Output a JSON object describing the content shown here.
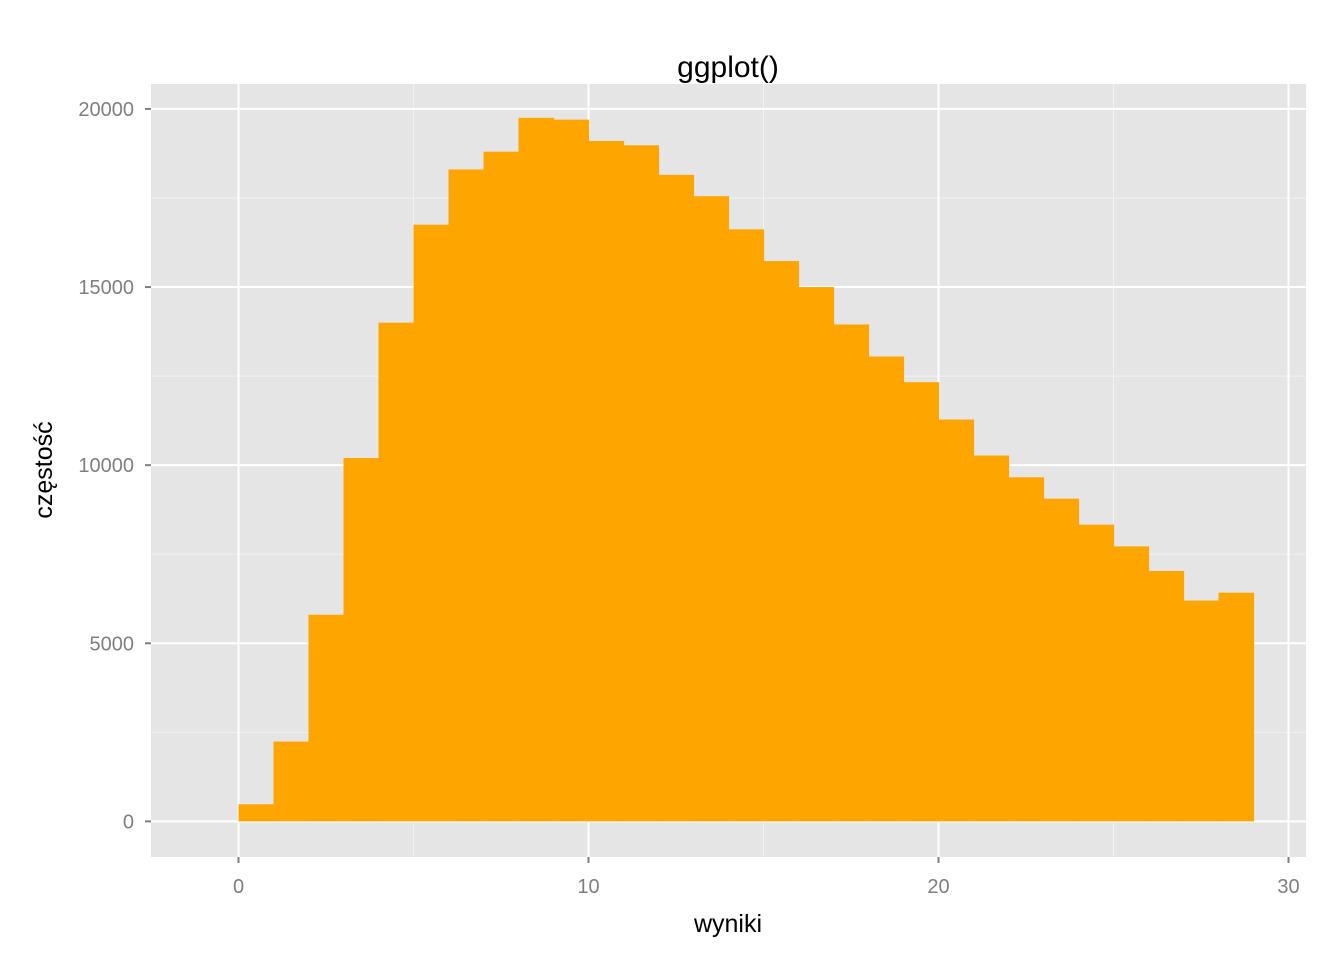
{
  "chart_data": {
    "type": "bar",
    "title": "ggplot()",
    "xlabel": "wyniki",
    "ylabel": "częstość",
    "bin_width": 1,
    "bins": [
      {
        "x0": 0,
        "x1": 1,
        "count": 480
      },
      {
        "x0": 1,
        "x1": 2,
        "count": 2240
      },
      {
        "x0": 2,
        "x1": 3,
        "count": 5800
      },
      {
        "x0": 3,
        "x1": 4,
        "count": 10200
      },
      {
        "x0": 4,
        "x1": 5,
        "count": 14000
      },
      {
        "x0": 5,
        "x1": 6,
        "count": 16750
      },
      {
        "x0": 6,
        "x1": 7,
        "count": 18300
      },
      {
        "x0": 7,
        "x1": 8,
        "count": 18800
      },
      {
        "x0": 8,
        "x1": 9,
        "count": 19750
      },
      {
        "x0": 9,
        "x1": 10,
        "count": 19700
      },
      {
        "x0": 10,
        "x1": 11,
        "count": 19100
      },
      {
        "x0": 11,
        "x1": 12,
        "count": 18980
      },
      {
        "x0": 12,
        "x1": 13,
        "count": 18150
      },
      {
        "x0": 13,
        "x1": 14,
        "count": 17550
      },
      {
        "x0": 14,
        "x1": 15,
        "count": 16620
      },
      {
        "x0": 15,
        "x1": 16,
        "count": 15730
      },
      {
        "x0": 16,
        "x1": 17,
        "count": 15000
      },
      {
        "x0": 17,
        "x1": 18,
        "count": 13950
      },
      {
        "x0": 18,
        "x1": 19,
        "count": 13050
      },
      {
        "x0": 19,
        "x1": 20,
        "count": 12330
      },
      {
        "x0": 20,
        "x1": 21,
        "count": 11280
      },
      {
        "x0": 21,
        "x1": 22,
        "count": 10270
      },
      {
        "x0": 22,
        "x1": 23,
        "count": 9660
      },
      {
        "x0": 23,
        "x1": 24,
        "count": 9060
      },
      {
        "x0": 24,
        "x1": 25,
        "count": 8330
      },
      {
        "x0": 25,
        "x1": 26,
        "count": 7720
      },
      {
        "x0": 26,
        "x1": 27,
        "count": 7030
      },
      {
        "x0": 27,
        "x1": 28,
        "count": 6200
      },
      {
        "x0": 28,
        "x1": 29,
        "count": 6420
      }
    ],
    "xlim": [
      -2.5,
      30.5
    ],
    "ylim": [
      -1000,
      20700
    ],
    "x_ticks": [
      0,
      10,
      20,
      30
    ],
    "x_tick_labels": [
      "0",
      "10",
      "20",
      "30"
    ],
    "x_minor_ticks": [
      5,
      15,
      25
    ],
    "y_ticks": [
      0,
      5000,
      10000,
      15000,
      20000
    ],
    "y_tick_labels": [
      "0",
      "5000",
      "10000",
      "15000",
      "20000"
    ],
    "y_minor_ticks": [
      2500,
      7500,
      12500,
      17500
    ],
    "grid": true,
    "legend": "none",
    "colors": {
      "fill": "#FFA500",
      "panel_background": "#E5E5E5",
      "grid_major": "#FFFFFF",
      "grid_minor": "#F2F2F2",
      "tick_text": "#7F7F7F"
    }
  }
}
